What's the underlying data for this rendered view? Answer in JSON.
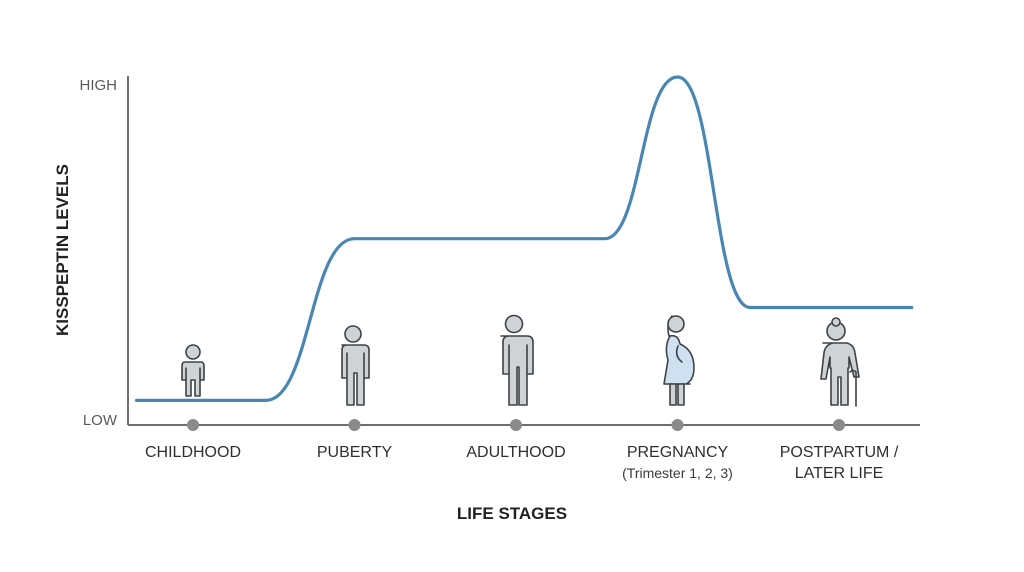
{
  "chart_data": {
    "type": "line",
    "title": "",
    "xlabel": "LIFE STAGES",
    "ylabel": "KISSPEPTIN LEVELS",
    "y_ticks": [
      "LOW",
      "HIGH"
    ],
    "ylim": [
      0,
      1
    ],
    "grid": false,
    "categories": [
      {
        "label": "CHILDHOOD",
        "sub": ""
      },
      {
        "label": "PUBERTY",
        "sub": ""
      },
      {
        "label": "ADULTHOOD",
        "sub": ""
      },
      {
        "label": "PREGNANCY",
        "sub": "(Trimester 1, 2, 3)"
      },
      {
        "label": "POSTPARTUM /",
        "sub": "LATER LIFE"
      }
    ],
    "series": [
      {
        "color": "#4a86b4",
        "points": [
          {
            "x": -0.35,
            "y": 0.06
          },
          {
            "x": 0.45,
            "y": 0.06
          },
          {
            "x": 1.0,
            "y": 0.53
          },
          {
            "x": 2.55,
            "y": 0.53
          },
          {
            "x": 3.0,
            "y": 1.0
          },
          {
            "x": 3.45,
            "y": 0.33
          },
          {
            "x": 4.45,
            "y": 0.33
          }
        ]
      }
    ],
    "icons": [
      "child-icon",
      "teen-icon",
      "adult-icon",
      "pregnant-woman-icon",
      "elderly-person-icon"
    ]
  }
}
